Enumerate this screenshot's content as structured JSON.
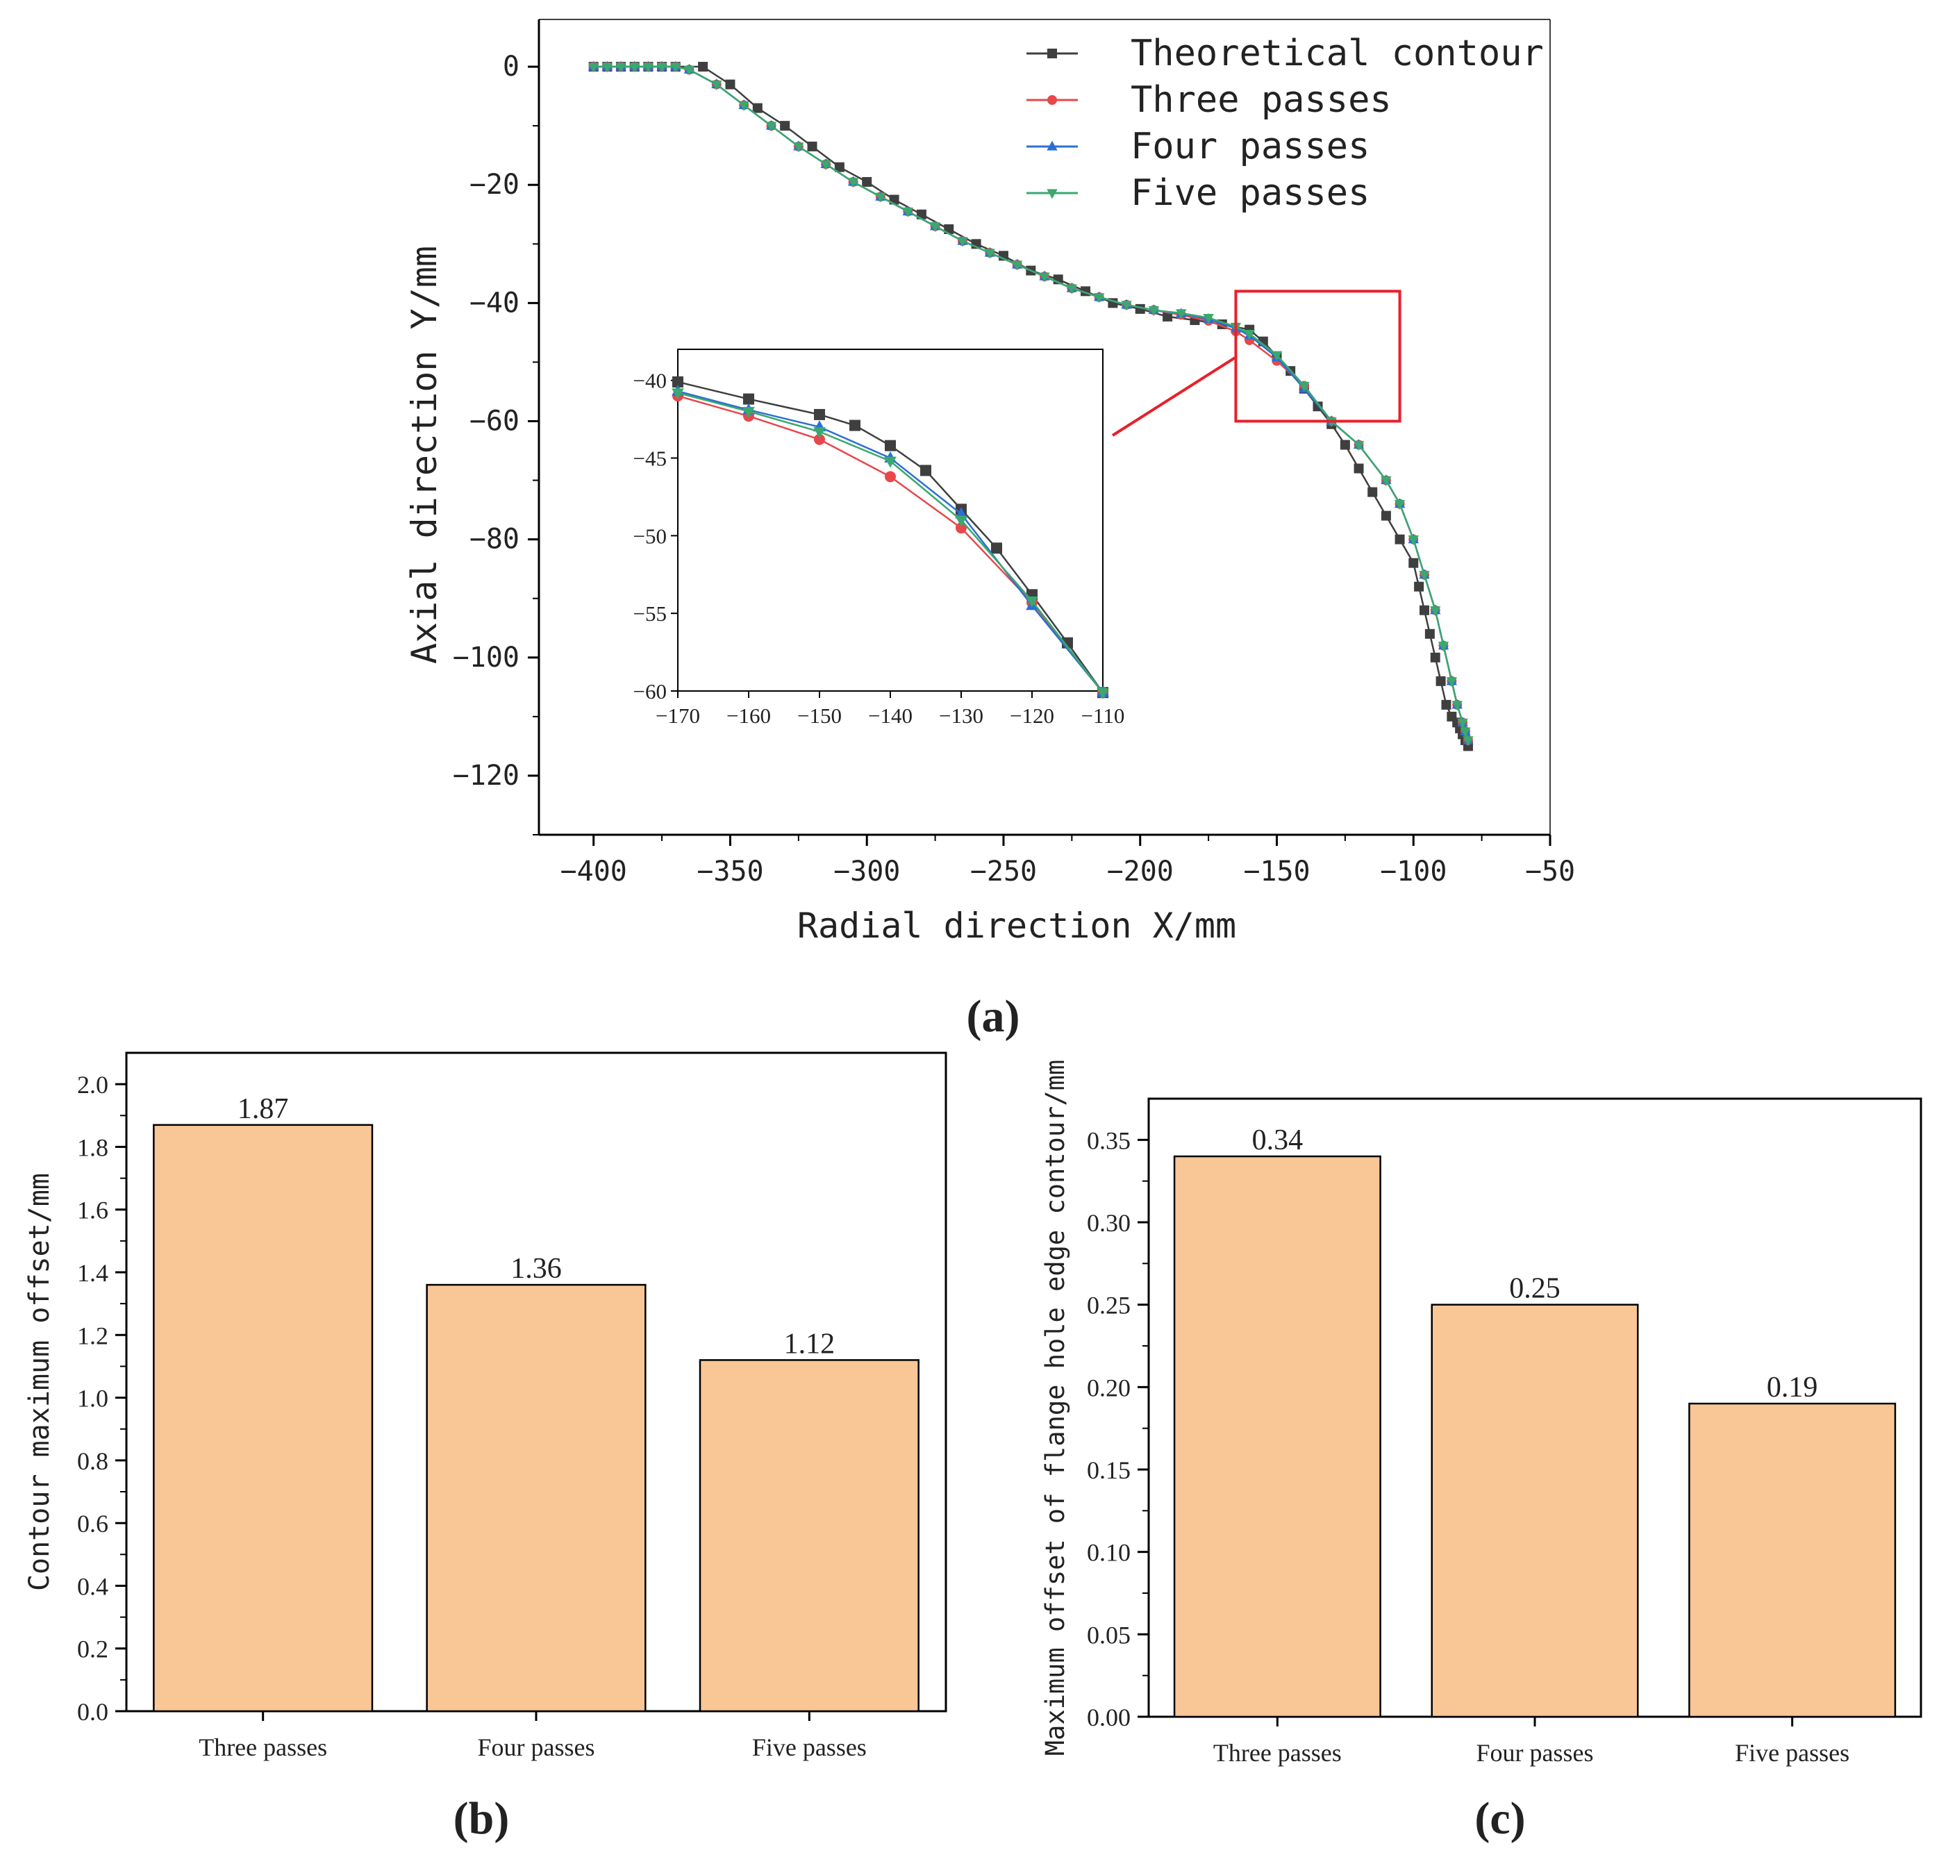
{
  "colors": {
    "theoretical": "#3f3f3f",
    "three": "#e8474b",
    "four": "#2b6fd6",
    "five": "#3aa86f",
    "bar_fill": "#f9c696",
    "highlight_box": "#e8202a"
  },
  "captions": {
    "a": "(a)",
    "b": "(b)",
    "c": "(c)"
  },
  "chart_data": [
    {
      "id": "a",
      "type": "line",
      "title": "",
      "xlabel": "Radial direction X/mm",
      "ylabel": "Axial direction Y/mm",
      "xlim": [
        -420,
        -50
      ],
      "ylim": [
        -130,
        8
      ],
      "xticks": [
        -400,
        -350,
        -300,
        -250,
        -200,
        -150,
        -100,
        -50
      ],
      "yticks": [
        0,
        -20,
        -40,
        -60,
        -80,
        -100,
        -120
      ],
      "xtick_labels": [
        "−400",
        "−350",
        "−300",
        "−250",
        "−200",
        "−150",
        "−100",
        "−50"
      ],
      "ytick_labels": [
        "0",
        "−20",
        "−40",
        "−60",
        "−80",
        "−100",
        "−120"
      ],
      "legend": [
        "Theoretical contour",
        "Three passes",
        "Four passes",
        "Five passes"
      ],
      "legend_position": "top-right",
      "series": [
        {
          "name": "Theoretical contour",
          "marker": "square",
          "x": [
            -400,
            -395,
            -390,
            -385,
            -380,
            -375,
            -370,
            -360,
            -350,
            -340,
            -330,
            -320,
            -310,
            -300,
            -290,
            -280,
            -270,
            -260,
            -250,
            -240,
            -230,
            -220,
            -210,
            -200,
            -190,
            -180,
            -170,
            -160,
            -155,
            -150,
            -145,
            -140,
            -135,
            -130,
            -125,
            -120,
            -115,
            -110,
            -105,
            -100,
            -98,
            -96,
            -94,
            -92,
            -90,
            -88,
            -86,
            -84,
            -83,
            -82,
            -81,
            -80
          ],
          "y": [
            0,
            0,
            0,
            0,
            0,
            0,
            0,
            0,
            -3,
            -7,
            -10,
            -13.5,
            -17,
            -19.5,
            -22.5,
            -25,
            -27.5,
            -30,
            -32,
            -34.5,
            -36,
            -38,
            -40,
            -41,
            -42.3,
            -42.9,
            -43.6,
            -44.5,
            -46.5,
            -49,
            -51.5,
            -54.5,
            -57.5,
            -60.5,
            -64,
            -68,
            -72,
            -76,
            -80,
            -84,
            -88,
            -92,
            -96,
            -100,
            -104,
            -108,
            -110,
            -111,
            -112,
            -113,
            -114,
            -115
          ],
          "xclip": -80
        },
        {
          "name": "Three passes",
          "marker": "circle",
          "x": [
            -400,
            -395,
            -390,
            -385,
            -380,
            -375,
            -370,
            -365,
            -355,
            -345,
            -335,
            -325,
            -315,
            -305,
            -295,
            -285,
            -275,
            -265,
            -255,
            -245,
            -235,
            -225,
            -215,
            -205,
            -195,
            -185,
            -175,
            -165,
            -160,
            -150,
            -140,
            -130,
            -120,
            -110,
            -105,
            -100,
            -96,
            -92,
            -89,
            -86,
            -84,
            -82,
            -81,
            -80
          ],
          "y": [
            0,
            0,
            0,
            0,
            0,
            0,
            0,
            -0.5,
            -3,
            -6.5,
            -10,
            -13.5,
            -16.5,
            -19.5,
            -22,
            -24.5,
            -27,
            -29.5,
            -31.5,
            -33.5,
            -35.5,
            -37.5,
            -39,
            -40.3,
            -41.2,
            -42,
            -43,
            -44.8,
            -46.3,
            -49.8,
            -54,
            -60,
            -64,
            -70,
            -74,
            -80,
            -86,
            -92,
            -98,
            -104,
            -108,
            -111,
            -112.5,
            -114
          ],
          "xclip": -80
        },
        {
          "name": "Four passes",
          "marker": "triangle-up",
          "x": [
            -400,
            -395,
            -390,
            -385,
            -380,
            -375,
            -370,
            -365,
            -355,
            -345,
            -335,
            -325,
            -315,
            -305,
            -295,
            -285,
            -275,
            -265,
            -255,
            -245,
            -235,
            -225,
            -215,
            -205,
            -195,
            -185,
            -175,
            -165,
            -160,
            -150,
            -140,
            -130,
            -120,
            -110,
            -105,
            -100,
            -96,
            -92,
            -89,
            -86,
            -84,
            -82,
            -81,
            -80
          ],
          "y": [
            0,
            0,
            0,
            0,
            0,
            0,
            0,
            -0.5,
            -3,
            -6.5,
            -10,
            -13.5,
            -16.5,
            -19.5,
            -22,
            -24.5,
            -27,
            -29.5,
            -31.5,
            -33.5,
            -35.5,
            -37.5,
            -39,
            -40.3,
            -41.2,
            -41.8,
            -42.7,
            -44.3,
            -45.5,
            -49.2,
            -54.5,
            -60,
            -64,
            -70,
            -74,
            -80,
            -86,
            -92,
            -98,
            -104,
            -108,
            -111,
            -112.5,
            -114
          ],
          "xclip": -80
        },
        {
          "name": "Five passes",
          "marker": "triangle-down",
          "x": [
            -400,
            -395,
            -390,
            -385,
            -380,
            -375,
            -370,
            -365,
            -355,
            -345,
            -335,
            -325,
            -315,
            -305,
            -295,
            -285,
            -275,
            -265,
            -255,
            -245,
            -235,
            -225,
            -215,
            -205,
            -195,
            -185,
            -175,
            -165,
            -160,
            -150,
            -140,
            -130,
            -120,
            -110,
            -105,
            -100,
            -96,
            -92,
            -89,
            -86,
            -84,
            -82,
            -81,
            -80
          ],
          "y": [
            0,
            0,
            0,
            0,
            0,
            0,
            0,
            -0.5,
            -3,
            -6.5,
            -10,
            -13.5,
            -16.5,
            -19.5,
            -22,
            -24.5,
            -27,
            -29.5,
            -31.5,
            -33.5,
            -35.5,
            -37.5,
            -39,
            -40.3,
            -41.2,
            -41.7,
            -42.5,
            -44,
            -45.2,
            -48.8,
            -54,
            -60,
            -64,
            -70,
            -74,
            -80,
            -86,
            -92,
            -98,
            -104,
            -108,
            -111,
            -112.5,
            -114
          ],
          "xclip": -80
        }
      ],
      "highlight_region": {
        "x": [
          -165,
          -105
        ],
        "y": [
          -38,
          -60
        ]
      },
      "inset": {
        "xlim": [
          -170,
          -110
        ],
        "ylim": [
          -60,
          -38
        ],
        "xticks": [
          -170,
          -160,
          -150,
          -140,
          -130,
          -120,
          -110
        ],
        "yticks": [
          -40,
          -45,
          -50,
          -55,
          -60
        ],
        "xtick_labels": [
          "−170",
          "−160",
          "−150",
          "−140",
          "−130",
          "−120",
          "−110"
        ],
        "ytick_labels": [
          "−40",
          "−45",
          "−50",
          "−55",
          "−60"
        ],
        "series": [
          {
            "name": "Theoretical contour",
            "x": [
              -170,
              -160,
              -150,
              -145,
              -140,
              -135,
              -130,
              -125,
              -120,
              -115,
              -110
            ],
            "y": [
              -40.1,
              -41.2,
              -42.2,
              -42.9,
              -44.2,
              -45.8,
              -48.3,
              -50.8,
              -53.8,
              -56.9,
              -60.1
            ]
          },
          {
            "name": "Three passes",
            "x": [
              -170,
              -160,
              -150,
              -140,
              -130,
              -120,
              -110
            ],
            "y": [
              -41,
              -42.3,
              -43.8,
              -46.2,
              -49.5,
              -54.3,
              -60.1
            ]
          },
          {
            "name": "Four passes",
            "x": [
              -170,
              -160,
              -150,
              -140,
              -130,
              -120,
              -110
            ],
            "y": [
              -40.7,
              -41.9,
              -43,
              -45,
              -48.6,
              -54.5,
              -60.1
            ]
          },
          {
            "name": "Five passes",
            "x": [
              -170,
              -160,
              -150,
              -140,
              -130,
              -120,
              -110
            ],
            "y": [
              -40.8,
              -42,
              -43.3,
              -45.2,
              -49,
              -54.2,
              -60.1
            ]
          }
        ]
      }
    },
    {
      "id": "b",
      "type": "bar",
      "title": "",
      "xlabel": "",
      "ylabel": "Contour maximum offset/mm",
      "categories": [
        "Three passes",
        "Four passes",
        "Five passes"
      ],
      "values": [
        1.87,
        1.36,
        1.12
      ],
      "value_labels": [
        "1.87",
        "1.36",
        "1.12"
      ],
      "ylim": [
        0,
        2.1
      ],
      "yticks": [
        0,
        0.2,
        0.4,
        0.6,
        0.8,
        1.0,
        1.2,
        1.4,
        1.6,
        1.8,
        2.0
      ],
      "ytick_labels": [
        "0.0",
        "0.2",
        "0.4",
        "0.6",
        "0.8",
        "1.0",
        "1.2",
        "1.4",
        "1.6",
        "1.8",
        "2.0"
      ]
    },
    {
      "id": "c",
      "type": "bar",
      "title": "",
      "xlabel": "",
      "ylabel": "Maximum offset of flange hole edge contour/mm",
      "categories": [
        "Three passes",
        "Four passes",
        "Five passes"
      ],
      "values": [
        0.34,
        0.25,
        0.19
      ],
      "value_labels": [
        "0.34",
        "0.25",
        "0.19"
      ],
      "ylim": [
        0,
        0.375
      ],
      "yticks": [
        0,
        0.05,
        0.1,
        0.15,
        0.2,
        0.25,
        0.3,
        0.35
      ],
      "ytick_labels": [
        "0.00",
        "0.05",
        "0.10",
        "0.15",
        "0.20",
        "0.25",
        "0.30",
        "0.35"
      ]
    }
  ]
}
